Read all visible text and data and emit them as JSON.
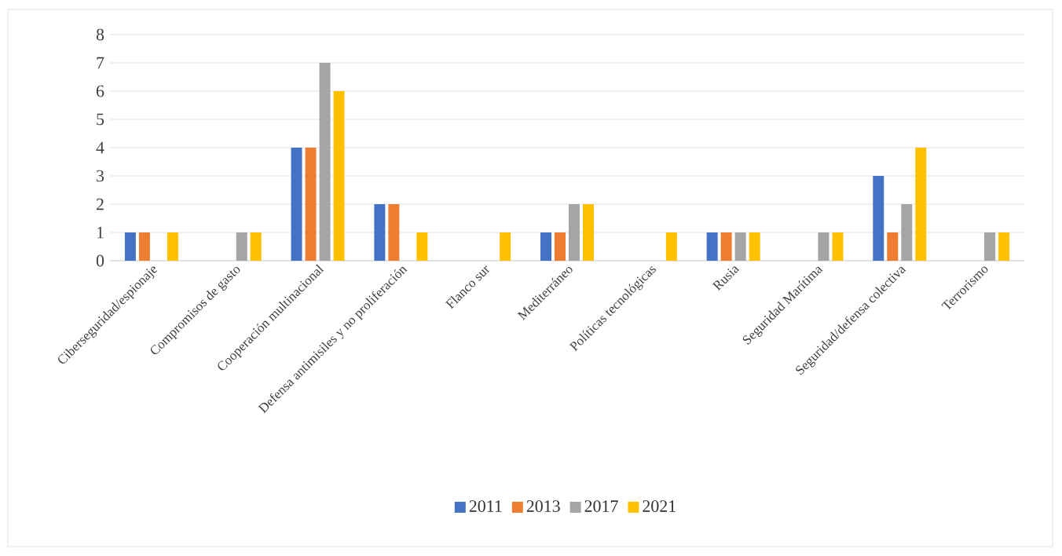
{
  "chart_data": {
    "type": "bar",
    "categories": [
      "Ciberseguridad/espionaje",
      "Compromisos de gasto",
      "Cooperación multinacional",
      "Defensa antimisiles y no proliferación",
      "Flanco sur",
      "Mediterráneo",
      "Políticas tecnológicas",
      "Rusia",
      "Seguridad Marítima",
      "Seguridad/defensa colectiva",
      "Terrorismo"
    ],
    "series": [
      {
        "name": "2011",
        "color": "#4472c4",
        "values": [
          1,
          0,
          4,
          2,
          0,
          1,
          0,
          1,
          0,
          3,
          0
        ]
      },
      {
        "name": "2013",
        "color": "#ed7d31",
        "values": [
          1,
          0,
          4,
          2,
          0,
          1,
          0,
          1,
          0,
          1,
          0
        ]
      },
      {
        "name": "2017",
        "color": "#a5a5a5",
        "values": [
          0,
          1,
          7,
          0,
          0,
          2,
          0,
          1,
          1,
          2,
          1
        ]
      },
      {
        "name": "2021",
        "color": "#ffc000",
        "values": [
          1,
          1,
          6,
          1,
          1,
          2,
          1,
          1,
          1,
          4,
          1
        ]
      }
    ],
    "ylim": [
      0,
      8
    ],
    "yticks": [
      0,
      1,
      2,
      3,
      4,
      5,
      6,
      7,
      8
    ],
    "grid": "y",
    "legend": "bottom"
  }
}
